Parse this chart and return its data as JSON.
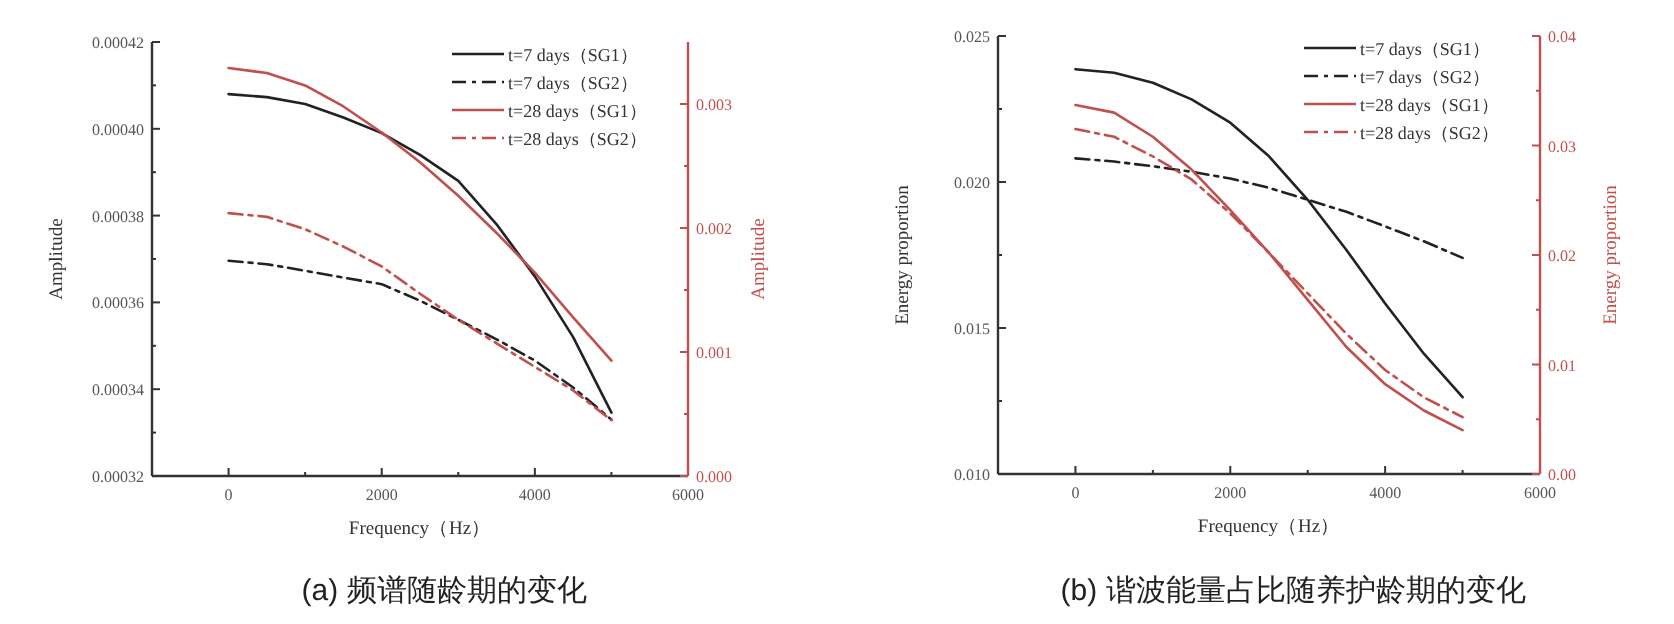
{
  "chart_data": [
    {
      "type": "line",
      "xlabel": "Frequency（Hz）",
      "ylabel": "Amplitude",
      "y2label": "Amplitude",
      "x": [
        0,
        500,
        1000,
        1500,
        2000,
        2500,
        3000,
        3500,
        4000,
        4500,
        5000
      ],
      "xlim": [
        -1000,
        6000
      ],
      "xticks": [
        0,
        {
          "value": 1000,
          "label": null
        },
        2000,
        {
          "value": 3000,
          "label": null
        },
        4000,
        {
          "value": 5000,
          "label": null
        },
        6000
      ],
      "ylim": [
        0.00032,
        0.00042
      ],
      "yticks": [
        {
          "value": 0.00032,
          "label": "0.00032"
        },
        {
          "value": 0.00033,
          "label": null
        },
        {
          "value": 0.00034,
          "label": "0.00034"
        },
        {
          "value": 0.00035,
          "label": null
        },
        {
          "value": 0.00036,
          "label": "0.00036"
        },
        {
          "value": 0.00037,
          "label": null
        },
        {
          "value": 0.00038,
          "label": "0.00038"
        },
        {
          "value": 0.00039,
          "label": null
        },
        {
          "value": 0.0004,
          "label": "0.00040"
        },
        {
          "value": 0.00041,
          "label": null
        },
        {
          "value": 0.00042,
          "label": "0.00042"
        }
      ],
      "y2lim": [
        0,
        0.0035
      ],
      "y2ticks": [
        {
          "value": 0,
          "label": "0.000"
        },
        {
          "value": 0.0005,
          "label": null
        },
        {
          "value": 0.001,
          "label": "0.001"
        },
        {
          "value": 0.0015,
          "label": null
        },
        {
          "value": 0.002,
          "label": "0.002"
        },
        {
          "value": 0.0025,
          "label": null
        },
        {
          "value": 0.003,
          "label": "0.003"
        }
      ],
      "legend": "top right",
      "grid": false,
      "series": [
        {
          "name": "t=7 days（SG1）",
          "color": "#222222",
          "line_style": "solid",
          "values": [
            0.000408,
            0.0004073,
            0.0004057,
            0.0004026,
            0.000399,
            0.000394,
            0.000388,
            0.000378,
            0.000366,
            0.000352,
            0.0003346
          ]
        },
        {
          "name": "t=7 days（SG2）",
          "color": "#222222",
          "line_style": "dashed",
          "values": [
            0.0003696,
            0.0003688,
            0.0003673,
            0.0003657,
            0.0003642,
            0.0003604,
            0.000356,
            0.0003515,
            0.0003466,
            0.0003404,
            0.000333
          ]
        },
        {
          "name": "t=28 days（SG1）",
          "color": "#c0504d",
          "line_style": "solid",
          "axis": "y2",
          "values": [
            0.00329,
            0.00325,
            0.00315,
            0.00298,
            0.00277,
            0.00253,
            0.00226,
            0.00196,
            0.00164,
            0.00128,
            0.00093
          ]
        },
        {
          "name": "t=28 days（SG2）",
          "color": "#c0504d",
          "line_style": "dashed",
          "axis": "y2",
          "values": [
            0.00212,
            0.00209,
            0.00199,
            0.00185,
            0.00169,
            0.00147,
            0.00126,
            0.00107,
            0.00088,
            0.00069,
            0.00045
          ]
        }
      ],
      "annotations": [
        "(a) 频谱随龄期的变化"
      ]
    },
    {
      "type": "line",
      "xlabel": "Frequency（Hz）",
      "ylabel": "Energy proportion",
      "y2label": "Energy proportion",
      "x": [
        0,
        500,
        1000,
        1500,
        2000,
        2500,
        3000,
        3500,
        4000,
        4500,
        5000
      ],
      "xlim": [
        -1000,
        6000
      ],
      "xticks": [
        0,
        {
          "value": 1000,
          "label": null
        },
        2000,
        {
          "value": 3000,
          "label": null
        },
        4000,
        {
          "value": 5000,
          "label": null
        },
        6000
      ],
      "ylim": [
        0.01,
        0.025
      ],
      "yticks": [
        {
          "value": 0.01,
          "label": "0.010"
        },
        {
          "value": 0.0125,
          "label": null
        },
        {
          "value": 0.015,
          "label": "0.015"
        },
        {
          "value": 0.0175,
          "label": null
        },
        {
          "value": 0.02,
          "label": "0.020"
        },
        {
          "value": 0.0225,
          "label": null
        },
        {
          "value": 0.025,
          "label": "0.025"
        }
      ],
      "y2lim": [
        0,
        0.04
      ],
      "y2ticks": [
        {
          "value": 0,
          "label": "0.00"
        },
        {
          "value": 0.005,
          "label": null
        },
        {
          "value": 0.01,
          "label": "0.01"
        },
        {
          "value": 0.015,
          "label": null
        },
        {
          "value": 0.02,
          "label": "0.02"
        },
        {
          "value": 0.025,
          "label": null
        },
        {
          "value": 0.03,
          "label": "0.03"
        },
        {
          "value": 0.035,
          "label": null
        },
        {
          "value": 0.04,
          "label": "0.04"
        }
      ],
      "legend": "top right",
      "grid": false,
      "series": [
        {
          "name": "t=7 days（SG1）",
          "color": "#222222",
          "line_style": "solid",
          "values": [
            0.02386,
            0.02374,
            0.0234,
            0.02283,
            0.02203,
            0.02088,
            0.01939,
            0.01767,
            0.01584,
            0.01412,
            0.01263
          ]
        },
        {
          "name": "t=7 days（SG2）",
          "color": "#222222",
          "line_style": "dashed",
          "values": [
            0.02081,
            0.0207,
            0.02054,
            0.02035,
            0.02012,
            0.0198,
            0.01939,
            0.01898,
            0.01848,
            0.01797,
            0.0174
          ]
        },
        {
          "name": "t=28 days（SG1）",
          "color": "#c0504d",
          "line_style": "solid",
          "axis": "y2",
          "values": [
            0.0337,
            0.033,
            0.0308,
            0.0278,
            0.0241,
            0.0202,
            0.0159,
            0.0116,
            0.0082,
            0.0058,
            0.004
          ]
        },
        {
          "name": "t=28 days（SG2）",
          "color": "#c0504d",
          "line_style": "dashed",
          "axis": "y2",
          "values": [
            0.0315,
            0.0308,
            0.029,
            0.0269,
            0.0238,
            0.0202,
            0.0165,
            0.0128,
            0.0095,
            0.007,
            0.0052
          ]
        }
      ],
      "annotations": [
        "(b) 谐波能量占比随养护龄期的变化"
      ]
    }
  ]
}
